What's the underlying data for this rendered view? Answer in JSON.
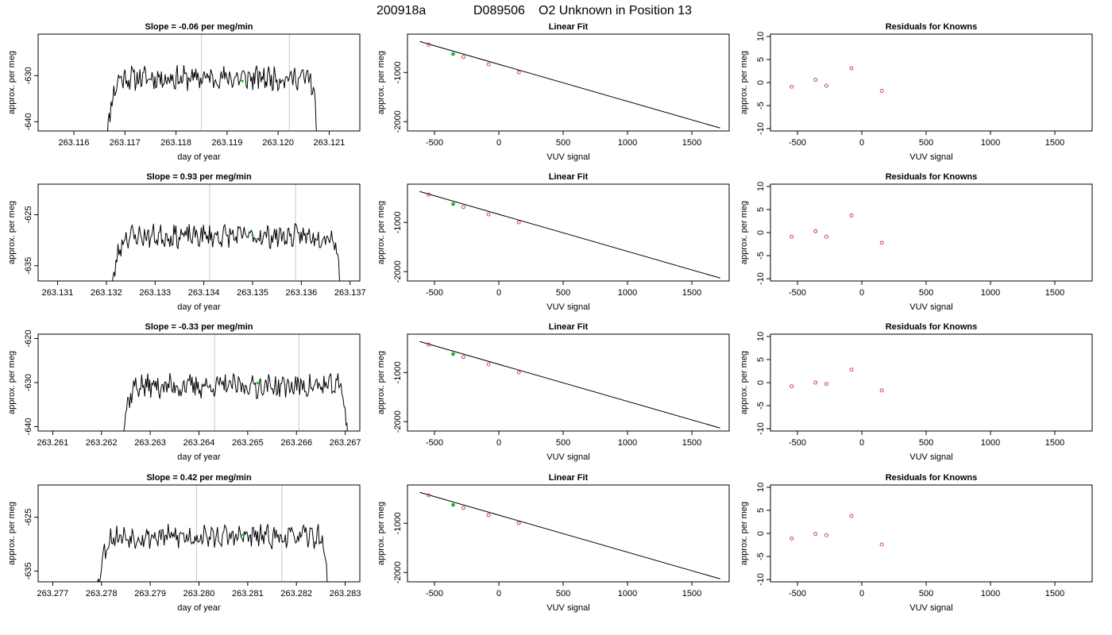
{
  "figure": {
    "title_parts": [
      "200918a",
      "D089506",
      "O2 Unknown in Position  13"
    ]
  },
  "chart_data": [
    {
      "row": 1,
      "panel": "timeseries",
      "type": "line",
      "title": "Slope =  -0.06  per meg/min",
      "xlabel": "day of year",
      "ylabel": "approx. per meg",
      "xlim": [
        263.1153,
        263.1216
      ],
      "ylim": [
        -642,
        -621
      ],
      "xticks": [
        263.116,
        263.117,
        263.118,
        263.119,
        263.12,
        263.121
      ],
      "xtick_labels": [
        "263.116",
        "263.117",
        "263.118",
        "263.119",
        "263.120",
        "263.121"
      ],
      "yticks": [
        -640,
        -630
      ],
      "x_start": 263.1166,
      "x_end": 263.1208,
      "y_mean": -630.5,
      "y_amp": 2.2,
      "seed": 11,
      "vlines": [
        263.1185,
        263.12022
      ],
      "green_point": [
        263.1193,
        -631.2
      ]
    },
    {
      "row": 1,
      "panel": "fit",
      "type": "scatter",
      "title": "Linear Fit",
      "xlabel": "VUV signal",
      "ylabel": "approx. per meg",
      "xlim": [
        -710,
        1790
      ],
      "ylim": [
        -2190,
        -220
      ],
      "xticks": [
        -500,
        0,
        500,
        1000,
        1500
      ],
      "yticks": [
        -1000,
        -2000
      ],
      "fit_line": {
        "x": [
          -615,
          1720
        ],
        "y": [
          -370,
          -2130
        ]
      },
      "known_points": {
        "x": [
          -545,
          -275,
          -80,
          155
        ],
        "y": [
          -433,
          -686,
          -834,
          -995
        ]
      },
      "unknown_point": [
        -355,
        -625
      ]
    },
    {
      "row": 1,
      "panel": "residuals",
      "type": "scatter",
      "title": "Residuals for Knowns",
      "xlabel": "VUV signal",
      "ylabel": "approx. per meg",
      "xlim": [
        -710,
        1790
      ],
      "ylim": [
        -10.5,
        10.5
      ],
      "xticks": [
        -500,
        0,
        500,
        1000,
        1500
      ],
      "yticks": [
        -10,
        -5,
        0,
        5,
        10
      ],
      "x": [
        -545,
        -360,
        -275,
        -80,
        155
      ],
      "y": [
        -0.9,
        0.6,
        -0.7,
        3.1,
        -1.8
      ]
    },
    {
      "row": 2,
      "panel": "timeseries",
      "type": "line",
      "title": "Slope =  0.93  per meg/min",
      "xlabel": "day of year",
      "ylabel": "approx. per meg",
      "xlim": [
        263.1306,
        263.1372
      ],
      "ylim": [
        -638,
        -619
      ],
      "xticks": [
        263.131,
        263.132,
        263.133,
        263.134,
        263.135,
        263.136,
        263.137
      ],
      "xtick_labels": [
        "263.131",
        "263.132",
        "263.133",
        "263.134",
        "263.135",
        "263.136",
        "263.137"
      ],
      "yticks": [
        -635,
        -625
      ],
      "x_start": 263.13205,
      "x_end": 263.13685,
      "y_mean": -629.2,
      "y_amp": 1.9,
      "seed": 23,
      "vlines": [
        263.13412,
        263.13588
      ],
      "green_point": [
        263.135,
        -629.0
      ]
    },
    {
      "row": 2,
      "panel": "fit",
      "type": "scatter",
      "title": "Linear Fit",
      "xlabel": "VUV signal",
      "ylabel": "approx. per meg",
      "xlim": [
        -710,
        1790
      ],
      "ylim": [
        -2190,
        -220
      ],
      "xticks": [
        -500,
        0,
        500,
        1000,
        1500
      ],
      "yticks": [
        -1000,
        -2000
      ],
      "fit_line": {
        "x": [
          -615,
          1720
        ],
        "y": [
          -370,
          -2130
        ]
      },
      "known_points": {
        "x": [
          -545,
          -275,
          -80,
          155
        ],
        "y": [
          -433,
          -686,
          -834,
          -995
        ]
      },
      "unknown_point": [
        -355,
        -625
      ]
    },
    {
      "row": 2,
      "panel": "residuals",
      "type": "scatter",
      "title": "Residuals for Knowns",
      "xlabel": "VUV signal",
      "ylabel": "approx. per meg",
      "xlim": [
        -710,
        1790
      ],
      "ylim": [
        -10.5,
        10.5
      ],
      "xticks": [
        -500,
        0,
        500,
        1000,
        1500
      ],
      "yticks": [
        -10,
        -5,
        0,
        5,
        10
      ],
      "x": [
        -545,
        -360,
        -275,
        -80,
        155
      ],
      "y": [
        -0.9,
        0.3,
        -0.9,
        3.7,
        -2.2
      ]
    },
    {
      "row": 3,
      "panel": "timeseries",
      "type": "line",
      "title": "Slope =  -0.33  per meg/min",
      "xlabel": "day of year",
      "ylabel": "approx. per meg",
      "xlim": [
        263.2607,
        263.2673
      ],
      "ylim": [
        -641,
        -619
      ],
      "xticks": [
        263.261,
        263.262,
        263.263,
        263.264,
        263.265,
        263.266,
        263.267
      ],
      "xtick_labels": [
        "263.261",
        "263.262",
        "263.263",
        "263.264",
        "263.265",
        "263.266",
        "263.267"
      ],
      "yticks": [
        -640,
        -630,
        -620
      ],
      "x_start": 263.26235,
      "x_end": 263.2671,
      "y_mean": -630.8,
      "y_amp": 2.3,
      "seed": 37,
      "vlines": [
        263.26432,
        263.26605
      ],
      "green_point": [
        263.2652,
        -630.1
      ]
    },
    {
      "row": 3,
      "panel": "fit",
      "type": "scatter",
      "title": "Linear Fit",
      "xlabel": "VUV signal",
      "ylabel": "approx. per meg",
      "xlim": [
        -710,
        1790
      ],
      "ylim": [
        -2190,
        -220
      ],
      "xticks": [
        -500,
        0,
        500,
        1000,
        1500
      ],
      "yticks": [
        -1000,
        -2000
      ],
      "fit_line": {
        "x": [
          -615,
          1720
        ],
        "y": [
          -370,
          -2130
        ]
      },
      "known_points": {
        "x": [
          -545,
          -275,
          -80,
          155
        ],
        "y": [
          -433,
          -686,
          -834,
          -995
        ]
      },
      "unknown_point": [
        -355,
        -625
      ]
    },
    {
      "row": 3,
      "panel": "residuals",
      "type": "scatter",
      "title": "Residuals for Knowns",
      "xlabel": "VUV signal",
      "ylabel": "approx. per meg",
      "xlim": [
        -710,
        1790
      ],
      "ylim": [
        -10.5,
        10.5
      ],
      "xticks": [
        -500,
        0,
        500,
        1000,
        1500
      ],
      "yticks": [
        -10,
        -5,
        0,
        5,
        10
      ],
      "x": [
        -545,
        -360,
        -275,
        -80,
        155
      ],
      "y": [
        -0.8,
        0.0,
        -0.3,
        2.8,
        -1.7
      ]
    },
    {
      "row": 4,
      "panel": "timeseries",
      "type": "line",
      "title": "Slope =  0.42  per meg/min",
      "xlabel": "day of year",
      "ylabel": "approx. per meg",
      "xlim": [
        263.2767,
        263.2833
      ],
      "ylim": [
        -637,
        -619
      ],
      "xticks": [
        263.277,
        263.278,
        263.279,
        263.28,
        263.281,
        263.282,
        263.283
      ],
      "xtick_labels": [
        "263.277",
        "263.278",
        "263.279",
        "263.280",
        "263.281",
        "263.282",
        "263.283"
      ],
      "yticks": [
        -635,
        -625
      ],
      "x_start": 263.27785,
      "x_end": 263.2827,
      "y_mean": -628.6,
      "y_amp": 1.8,
      "seed": 53,
      "vlines": [
        263.27995,
        263.2817
      ],
      "green_point": [
        263.2809,
        -628.3
      ]
    },
    {
      "row": 4,
      "panel": "fit",
      "type": "scatter",
      "title": "Linear Fit",
      "xlabel": "VUV signal",
      "ylabel": "approx. per meg",
      "xlim": [
        -710,
        1790
      ],
      "ylim": [
        -2190,
        -220
      ],
      "xticks": [
        -500,
        0,
        500,
        1000,
        1500
      ],
      "yticks": [
        -1000,
        -2000
      ],
      "fit_line": {
        "x": [
          -615,
          1720
        ],
        "y": [
          -370,
          -2130
        ]
      },
      "known_points": {
        "x": [
          -545,
          -275,
          -80,
          155
        ],
        "y": [
          -433,
          -686,
          -834,
          -995
        ]
      },
      "unknown_point": [
        -355,
        -625
      ]
    },
    {
      "row": 4,
      "panel": "residuals",
      "type": "scatter",
      "title": "Residuals for Knowns",
      "xlabel": "VUV signal",
      "ylabel": "approx. per meg",
      "xlim": [
        -710,
        1790
      ],
      "ylim": [
        -10.5,
        10.5
      ],
      "xticks": [
        -500,
        0,
        500,
        1000,
        1500
      ],
      "yticks": [
        -10,
        -5,
        0,
        5,
        10
      ],
      "x": [
        -545,
        -360,
        -275,
        -80,
        155
      ],
      "y": [
        -1.1,
        -0.1,
        -0.4,
        3.8,
        -2.4
      ]
    }
  ],
  "colors": {
    "line": "#000000",
    "known_point": "#cc3333",
    "unknown_point": "#22bb22",
    "vline": "#c8c8c8",
    "axis": "#000000"
  }
}
